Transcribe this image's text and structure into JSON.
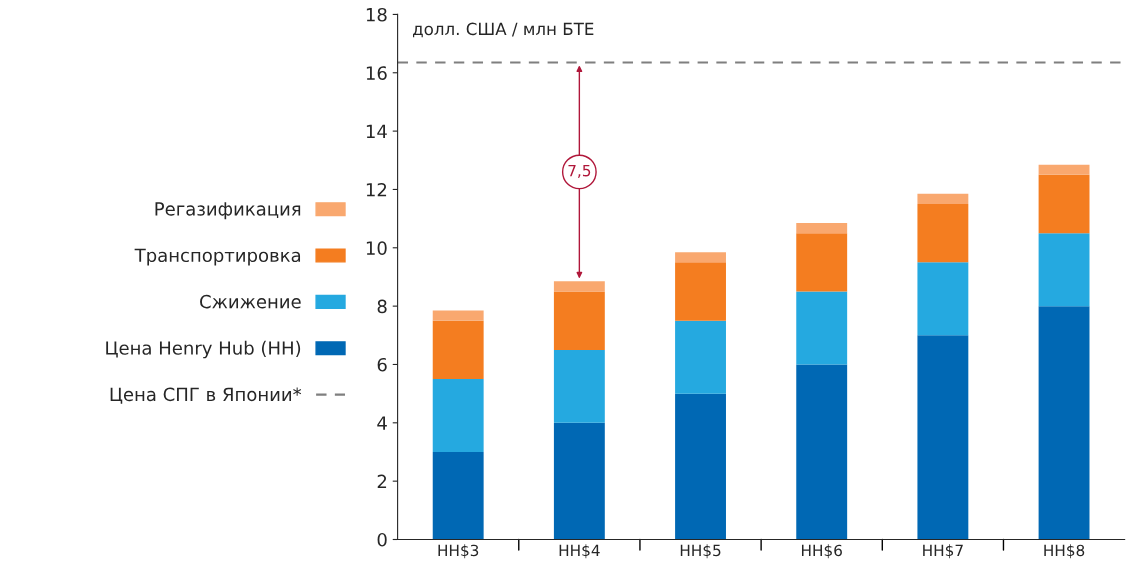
{
  "chart_data": {
    "type": "bar",
    "stacked": true,
    "ylabel": "долл. США / млн БТЕ",
    "categories": [
      "HH$3",
      "HH$4",
      "HH$5",
      "HH$6",
      "HH$7",
      "HH$8"
    ],
    "series": [
      {
        "name": "Цена Henry Hub (HH)",
        "color": "#0068b4",
        "values": [
          3,
          4,
          5,
          6,
          7,
          8
        ]
      },
      {
        "name": "Сжижение",
        "color": "#25a9e0",
        "values": [
          2.5,
          2.5,
          2.5,
          2.5,
          2.5,
          2.5
        ]
      },
      {
        "name": "Транспортировка",
        "color": "#f47d20",
        "values": [
          2,
          2,
          2,
          2,
          2,
          2
        ]
      },
      {
        "name": "Регазификация",
        "color": "#f9a86f",
        "values": [
          0.35,
          0.35,
          0.35,
          0.35,
          0.35,
          0.35
        ]
      }
    ],
    "ref_lines": [
      {
        "axis": "y",
        "value": 16.35,
        "label": "Цена СПГ в Японии*",
        "color": "#7f7f7f",
        "line_style": "dashed"
      }
    ],
    "annotations": [
      {
        "text": "7,5",
        "x": "HH$4",
        "y": 12.6
      }
    ],
    "ylim": [
      0,
      18
    ],
    "yticks": [
      0,
      2,
      4,
      6,
      8,
      10,
      12,
      14,
      16,
      18
    ],
    "grid": false,
    "legend": "left"
  }
}
